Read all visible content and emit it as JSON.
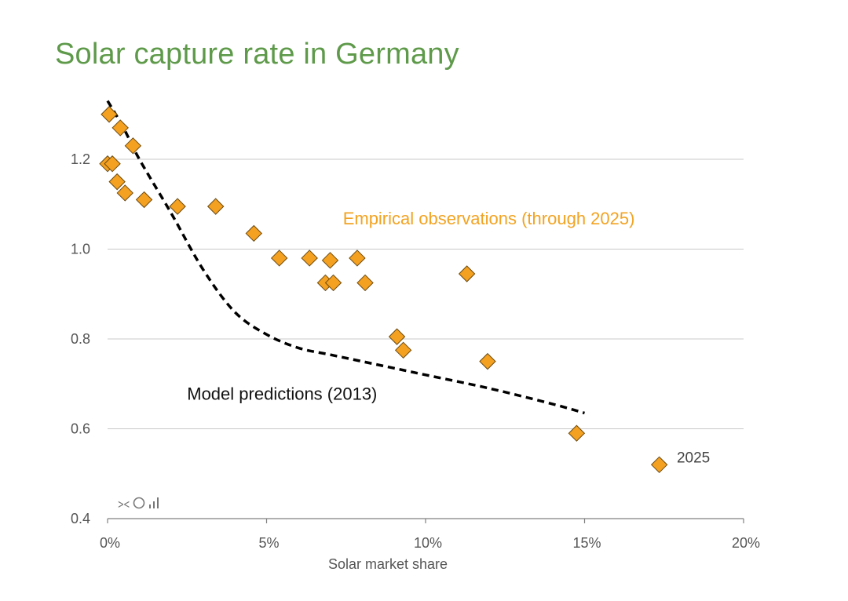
{
  "chart_data": {
    "type": "scatter",
    "title": "Solar capture rate in Germany",
    "xlabel": "Solar market share",
    "ylabel": "",
    "xlim": [
      0,
      20
    ],
    "ylim": [
      0.4,
      1.35
    ],
    "grid": true,
    "x_ticks": [
      {
        "value": 0,
        "label": "0%"
      },
      {
        "value": 5,
        "label": "5%"
      },
      {
        "value": 10,
        "label": "10%"
      },
      {
        "value": 15,
        "label": "15%"
      },
      {
        "value": 20,
        "label": "20%"
      }
    ],
    "y_ticks": [
      {
        "value": 0.4,
        "label": "0.4"
      },
      {
        "value": 0.6,
        "label": "0.6"
      },
      {
        "value": 0.8,
        "label": "0.8"
      },
      {
        "value": 1.0,
        "label": "1.0"
      },
      {
        "value": 1.2,
        "label": "1.2"
      }
    ],
    "series": [
      {
        "name": "Empirical observations (through 2025)",
        "kind": "scatter",
        "marker": "diamond",
        "color": "#f4a020",
        "edge_color": "#6b4a10",
        "points": [
          {
            "x": 0.05,
            "y": 1.3
          },
          {
            "x": 0.4,
            "y": 1.27
          },
          {
            "x": 0.8,
            "y": 1.23
          },
          {
            "x": 0.0,
            "y": 1.19
          },
          {
            "x": 0.15,
            "y": 1.19
          },
          {
            "x": 0.3,
            "y": 1.15
          },
          {
            "x": 0.55,
            "y": 1.125
          },
          {
            "x": 1.15,
            "y": 1.11
          },
          {
            "x": 2.2,
            "y": 1.095
          },
          {
            "x": 3.4,
            "y": 1.095
          },
          {
            "x": 4.6,
            "y": 1.035
          },
          {
            "x": 5.4,
            "y": 0.98
          },
          {
            "x": 6.35,
            "y": 0.98
          },
          {
            "x": 7.0,
            "y": 0.975
          },
          {
            "x": 7.85,
            "y": 0.98
          },
          {
            "x": 6.85,
            "y": 0.925
          },
          {
            "x": 7.1,
            "y": 0.925
          },
          {
            "x": 8.1,
            "y": 0.925
          },
          {
            "x": 11.3,
            "y": 0.945
          },
          {
            "x": 9.1,
            "y": 0.805
          },
          {
            "x": 9.3,
            "y": 0.775
          },
          {
            "x": 11.95,
            "y": 0.75
          },
          {
            "x": 14.75,
            "y": 0.59
          },
          {
            "x": 17.35,
            "y": 0.52
          }
        ]
      },
      {
        "name": "Model predictions (2013)",
        "kind": "line",
        "style": "dashed",
        "color": "#000000",
        "points": [
          {
            "x": 0.0,
            "y": 1.33
          },
          {
            "x": 0.5,
            "y": 1.27
          },
          {
            "x": 1.0,
            "y": 1.2
          },
          {
            "x": 2.0,
            "y": 1.08
          },
          {
            "x": 3.0,
            "y": 0.955
          },
          {
            "x": 4.0,
            "y": 0.86
          },
          {
            "x": 5.0,
            "y": 0.81
          },
          {
            "x": 6.0,
            "y": 0.78
          },
          {
            "x": 7.0,
            "y": 0.765
          },
          {
            "x": 8.0,
            "y": 0.75
          },
          {
            "x": 9.0,
            "y": 0.735
          },
          {
            "x": 10.0,
            "y": 0.72
          },
          {
            "x": 12.0,
            "y": 0.69
          },
          {
            "x": 14.0,
            "y": 0.655
          },
          {
            "x": 15.0,
            "y": 0.635
          }
        ]
      }
    ],
    "annotations": [
      {
        "text": "Empirical observations (through 2025)",
        "x": 7.4,
        "y": 1.055
      },
      {
        "text": "Model predictions (2013)",
        "x": 2.5,
        "y": 0.665
      },
      {
        "text": "2025",
        "x": 17.9,
        "y": 0.525
      }
    ]
  },
  "logo": {
    "glyphs": "⪥Oᵢıl"
  }
}
